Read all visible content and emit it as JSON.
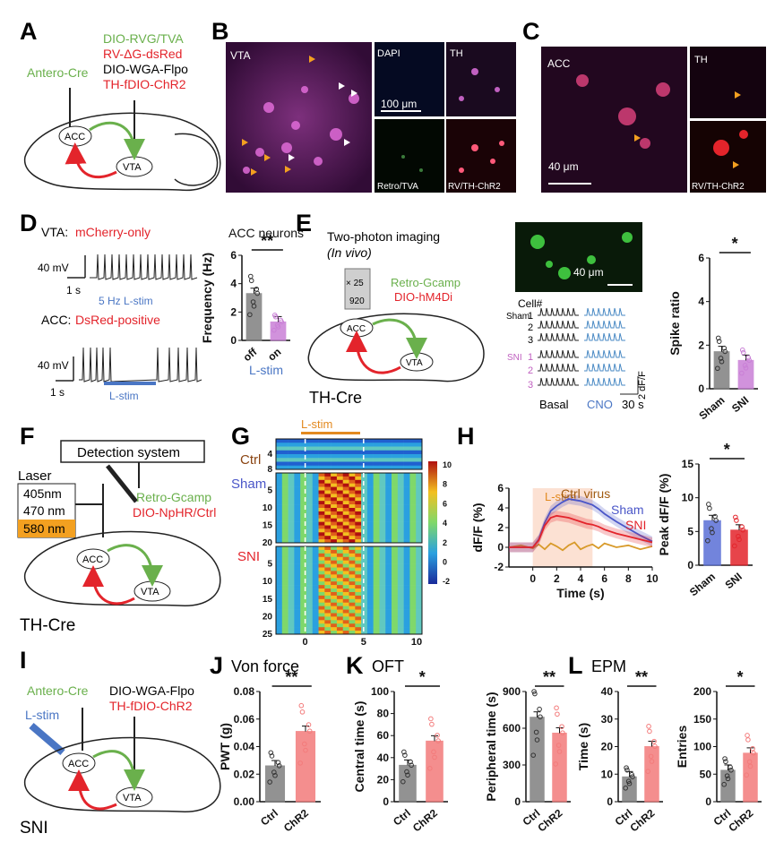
{
  "panels": {
    "A": {
      "letter": "A",
      "antero": "Antero-Cre",
      "v1": "DIO-RVG/TVA",
      "v2": "RV-ΔG-dsRed",
      "v3": "DIO-WGA-Flpo",
      "v4": "TH-fDIO-ChR2",
      "acc": "ACC",
      "vta": "VTA"
    },
    "B": {
      "letter": "B",
      "vta": "VTA",
      "dapi": "DAPI",
      "th": "TH",
      "scale": "100 μm",
      "retro": "Retro/TVA",
      "rvth": "RV/TH-ChR2"
    },
    "C": {
      "letter": "C",
      "acc": "ACC",
      "th": "TH",
      "scale": "40 μm",
      "rvth": "RV/TH-ChR2"
    },
    "D": {
      "letter": "D",
      "vta_label": "VTA:",
      "vta_cond": "mCherry-only",
      "mv1": "40 mV",
      "s1": "1 s",
      "lstim5": "5 Hz L-stim",
      "acc_label": "ACC:",
      "acc_cond": "DsRed-positive",
      "mv2": "40 mV",
      "s2": "1 s",
      "lstim": "L-stim"
    },
    "E": {
      "letter": "E",
      "title": "Two-photon imaging",
      "invivo": "(In vivo)",
      "obj1": "× 25",
      "obj2": "920",
      "v1": "Retro-Gcamp",
      "v2": "DIO-hM4Di",
      "acc": "ACC",
      "vta": "VTA",
      "thcre": "TH-Cre",
      "scale": "40 μm",
      "cellhdr": "Cell#",
      "sham": "Sham",
      "snishort": "SNI",
      "c1": "1",
      "c2": "2",
      "c3": "3",
      "basal": "Basal",
      "cno": "CNO",
      "t30": "30 s",
      "dff": "2 dF/F",
      "dff0": "0"
    },
    "F": {
      "letter": "F",
      "det": "Detection system",
      "laser": "Laser",
      "w1": "405nm",
      "w2": "470 nm",
      "w3": "580 nm",
      "v1": "Retro-Gcamp",
      "v2": "DIO-NpHR/Ctrl",
      "acc": "ACC",
      "vta": "VTA",
      "thcre": "TH-Cre"
    },
    "G": {
      "letter": "G",
      "lstim": "L-stim",
      "ctrl": "Ctrl",
      "sham": "Sham",
      "sni": "SNI"
    },
    "H": {
      "letter": "H",
      "lstim": "L-stim",
      "ctrl": "Ctrl virus",
      "sham": "Sham",
      "sni": "SNI"
    },
    "I": {
      "letter": "I",
      "antero": "Antero-Cre",
      "v1": "DIO-WGA-Flpo",
      "v2": "TH-fDIO-ChR2",
      "lstim": "L-stim",
      "acc": "ACC",
      "vta": "VTA",
      "sni": "SNI"
    },
    "J": {
      "letter": "J",
      "title": "Von force"
    },
    "K": {
      "letter": "K",
      "title": "OFT"
    },
    "L": {
      "letter": "L",
      "title": "EPM"
    }
  },
  "chart_data": [
    {
      "id": "D-bar",
      "type": "bar",
      "title": "ACC neurons",
      "ylabel": "Frequency (Hz)",
      "xlabel": "L-stim",
      "categories": [
        "off",
        "on"
      ],
      "values": [
        3.3,
        1.3
      ],
      "ylim": [
        0,
        6
      ],
      "yticks": [
        "0",
        "2",
        "4",
        "6"
      ],
      "sig": "**",
      "colors": [
        "#7f7f7f",
        "#c97fd6"
      ]
    },
    {
      "id": "E-bar",
      "type": "bar",
      "ylabel": "Spike ratio",
      "categories": [
        "Sham",
        "SNI"
      ],
      "values": [
        1.7,
        1.3
      ],
      "ylim": [
        0,
        6
      ],
      "yticks": [
        "0",
        "2",
        "4",
        "6"
      ],
      "sig": "*",
      "colors": [
        "#7f7f7f",
        "#c97fd6"
      ]
    },
    {
      "id": "G-heatmap",
      "type": "heatmap",
      "xlabel": "",
      "xticks": [
        "0",
        "5",
        "10"
      ],
      "colorbar_ticks": [
        "10",
        "8",
        "6",
        "4",
        "2",
        "0",
        "-2"
      ],
      "row_groups": [
        {
          "name": "Ctrl",
          "ticks": [
            "4",
            "8"
          ]
        },
        {
          "name": "Sham",
          "ticks": [
            "5",
            "10",
            "15",
            "20"
          ]
        },
        {
          "name": "SNI",
          "ticks": [
            "5",
            "10",
            "15",
            "20",
            "25"
          ]
        }
      ]
    },
    {
      "id": "H-line",
      "type": "line",
      "ylabel": "dF/F (%)",
      "xlabel": "Time (s)",
      "xlim": [
        -2,
        10
      ],
      "ylim": [
        -2,
        6
      ],
      "xticks": [
        "0",
        "2",
        "4",
        "6",
        "8",
        "10"
      ],
      "yticks": [
        "-2",
        "0",
        "2",
        "4",
        "6"
      ],
      "x": [
        -2,
        -1,
        0,
        0.5,
        1,
        1.5,
        2,
        2.5,
        3,
        3.5,
        4,
        4.5,
        5,
        5.5,
        6,
        7,
        8,
        9,
        10
      ],
      "series": [
        {
          "name": "Ctrl virus",
          "color": "#d89a2a",
          "values": [
            0,
            0.2,
            -0.1,
            0.3,
            -0.2,
            0.4,
            0.1,
            -0.3,
            0.2,
            0.5,
            -0.2,
            0.1,
            0.3,
            -0.1,
            0.4,
            0.0,
            0.2,
            -0.2,
            0.1
          ]
        },
        {
          "name": "Sham",
          "color": "#4a56c8",
          "values": [
            0,
            0,
            0,
            0.8,
            2.5,
            3.7,
            4.2,
            4.6,
            4.9,
            4.8,
            4.7,
            4.5,
            4.3,
            3.9,
            3.4,
            2.6,
            1.9,
            1.2,
            0.6
          ]
        },
        {
          "name": "SNI",
          "color": "#e3242b",
          "values": [
            0,
            0,
            0,
            0.7,
            2.2,
            3.0,
            3.2,
            3.1,
            3.0,
            2.8,
            2.6,
            2.4,
            2.3,
            2.1,
            1.8,
            1.4,
            1.1,
            0.8,
            0.5
          ]
        }
      ]
    },
    {
      "id": "H-bar",
      "type": "bar",
      "ylabel": "Peak dF/F (%)",
      "categories": [
        "Sham",
        "SNI"
      ],
      "values": [
        6.6,
        5.2
      ],
      "ylim": [
        0,
        15
      ],
      "yticks": [
        "0",
        "5",
        "10",
        "15"
      ],
      "sig": "*",
      "colors": [
        "#5a6fd6",
        "#e3242b"
      ]
    },
    {
      "id": "J-bar",
      "type": "bar",
      "ylabel": "PWT (g)",
      "categories": [
        "Ctrl",
        "ChR2"
      ],
      "values": [
        0.026,
        0.051
      ],
      "ylim": [
        0,
        0.08
      ],
      "yticks": [
        "0.00",
        "0.02",
        "0.04",
        "0.06",
        "0.08"
      ],
      "sig": "**",
      "colors": [
        "#7f7f7f",
        "#f37b7b"
      ]
    },
    {
      "id": "K-bar1",
      "type": "bar",
      "ylabel": "Central time (s)",
      "categories": [
        "Ctrl",
        "ChR2"
      ],
      "values": [
        33,
        55
      ],
      "ylim": [
        0,
        100
      ],
      "yticks": [
        "0",
        "20",
        "40",
        "60",
        "80",
        "100"
      ],
      "sig": "*",
      "colors": [
        "#7f7f7f",
        "#f37b7b"
      ]
    },
    {
      "id": "K-bar2",
      "type": "bar",
      "ylabel": "Peripheral time (s)",
      "categories": [
        "Ctrl",
        "ChR2"
      ],
      "values": [
        690,
        560
      ],
      "ylim": [
        0,
        900
      ],
      "yticks": [
        "0",
        "300",
        "600",
        "900"
      ],
      "sig": "**",
      "colors": [
        "#7f7f7f",
        "#f37b7b"
      ]
    },
    {
      "id": "L-bar1",
      "type": "bar",
      "ylabel": "Time (s)",
      "categories": [
        "Ctrl",
        "ChR2"
      ],
      "values": [
        9,
        20
      ],
      "ylim": [
        0,
        40
      ],
      "yticks": [
        "0",
        "10",
        "20",
        "30",
        "40"
      ],
      "sig": "**",
      "colors": [
        "#7f7f7f",
        "#f37b7b"
      ]
    },
    {
      "id": "L-bar2",
      "type": "bar",
      "ylabel": "Entries",
      "categories": [
        "Ctrl",
        "ChR2"
      ],
      "values": [
        57,
        88
      ],
      "ylim": [
        0,
        200
      ],
      "yticks": [
        "0",
        "50",
        "100",
        "150",
        "200"
      ],
      "sig": "*",
      "colors": [
        "#7f7f7f",
        "#f37b7b"
      ]
    }
  ]
}
